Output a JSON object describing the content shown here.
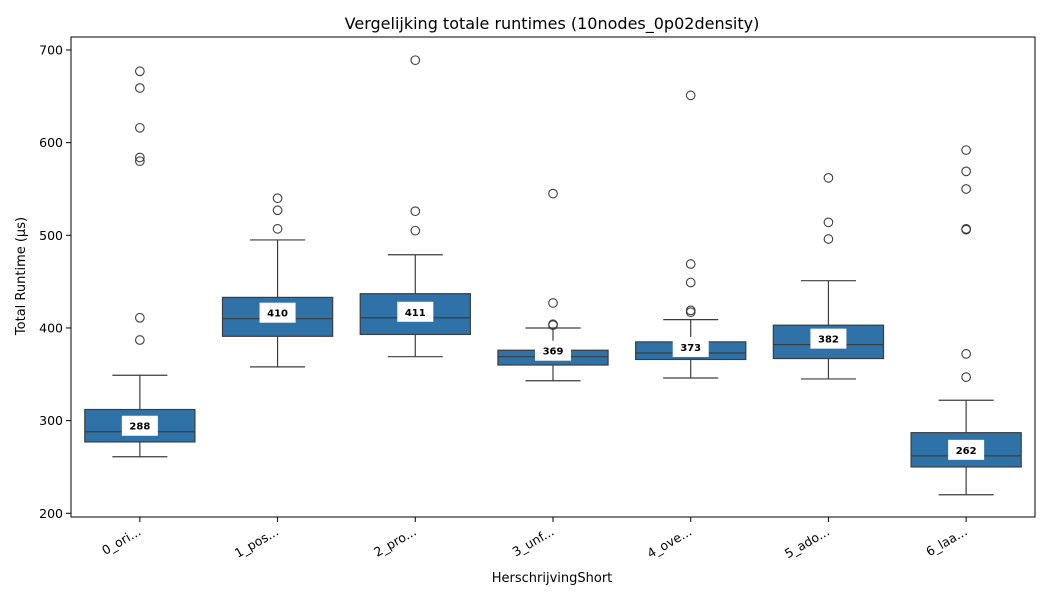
{
  "chart_data": {
    "type": "box",
    "title": "Vergelijking totale runtimes (10nodes_0p02density)",
    "xlabel": "HerschrijvingShort",
    "ylabel": "Total Runtime (µs)",
    "ylim": [
      196,
      714
    ],
    "yticks": [
      200,
      300,
      400,
      500,
      600,
      700
    ],
    "grid": false,
    "box_color": "#2f72a8",
    "line_color": "#3d3d3d",
    "categories": [
      "0_ori...",
      "1_pos...",
      "2_pro...",
      "3_unf...",
      "4_ove...",
      "5_ado...",
      "6_laa..."
    ],
    "boxes": [
      {
        "whisker_low": 261,
        "q1": 277,
        "median": 288,
        "q3": 312,
        "whisker_high": 349,
        "median_label": "288",
        "outliers": [
          387,
          411,
          580,
          584,
          616,
          659,
          677
        ]
      },
      {
        "whisker_low": 358,
        "q1": 391,
        "median": 410,
        "q3": 433,
        "whisker_high": 495,
        "median_label": "410",
        "outliers": [
          507,
          527,
          540
        ]
      },
      {
        "whisker_low": 369,
        "q1": 393,
        "median": 411,
        "q3": 437,
        "whisker_high": 479,
        "median_label": "411",
        "outliers": [
          505,
          526,
          689
        ]
      },
      {
        "whisker_low": 343,
        "q1": 360,
        "median": 369,
        "q3": 376,
        "whisker_high": 400,
        "median_label": "369",
        "outliers": [
          403,
          404,
          427,
          545
        ]
      },
      {
        "whisker_low": 346,
        "q1": 366,
        "median": 373,
        "q3": 385,
        "whisker_high": 409,
        "median_label": "373",
        "outliers": [
          417,
          419,
          449,
          469,
          651
        ]
      },
      {
        "whisker_low": 345,
        "q1": 367,
        "median": 382,
        "q3": 403,
        "whisker_high": 451,
        "median_label": "382",
        "outliers": [
          496,
          514,
          562
        ]
      },
      {
        "whisker_low": 220,
        "q1": 250,
        "median": 262,
        "q3": 287,
        "whisker_high": 322,
        "median_label": "262",
        "outliers": [
          347,
          372,
          506,
          507,
          550,
          569,
          592
        ]
      }
    ]
  }
}
